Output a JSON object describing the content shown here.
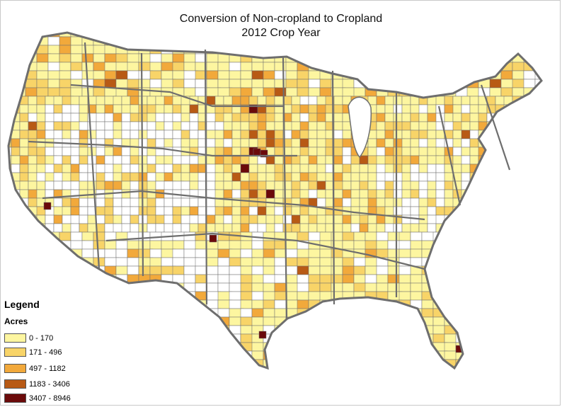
{
  "title_line1": "Conversion of Non-cropland to Cropland",
  "title_line2": "2012 Crop Year",
  "legend": {
    "heading": "Legend",
    "subheading": "Acres",
    "classes": [
      {
        "label": "0 - 170",
        "color": "#fdf6a0"
      },
      {
        "label": "171 - 496",
        "color": "#f8d468"
      },
      {
        "label": "497 - 1182",
        "color": "#f2a93b"
      },
      {
        "label": "1183 - 3406",
        "color": "#b85a15"
      },
      {
        "label": "3407 - 8946",
        "color": "#6b0a0a"
      }
    ]
  },
  "map_colors": {
    "no_data": "#ffffff",
    "border": "#6e6e6e"
  }
}
